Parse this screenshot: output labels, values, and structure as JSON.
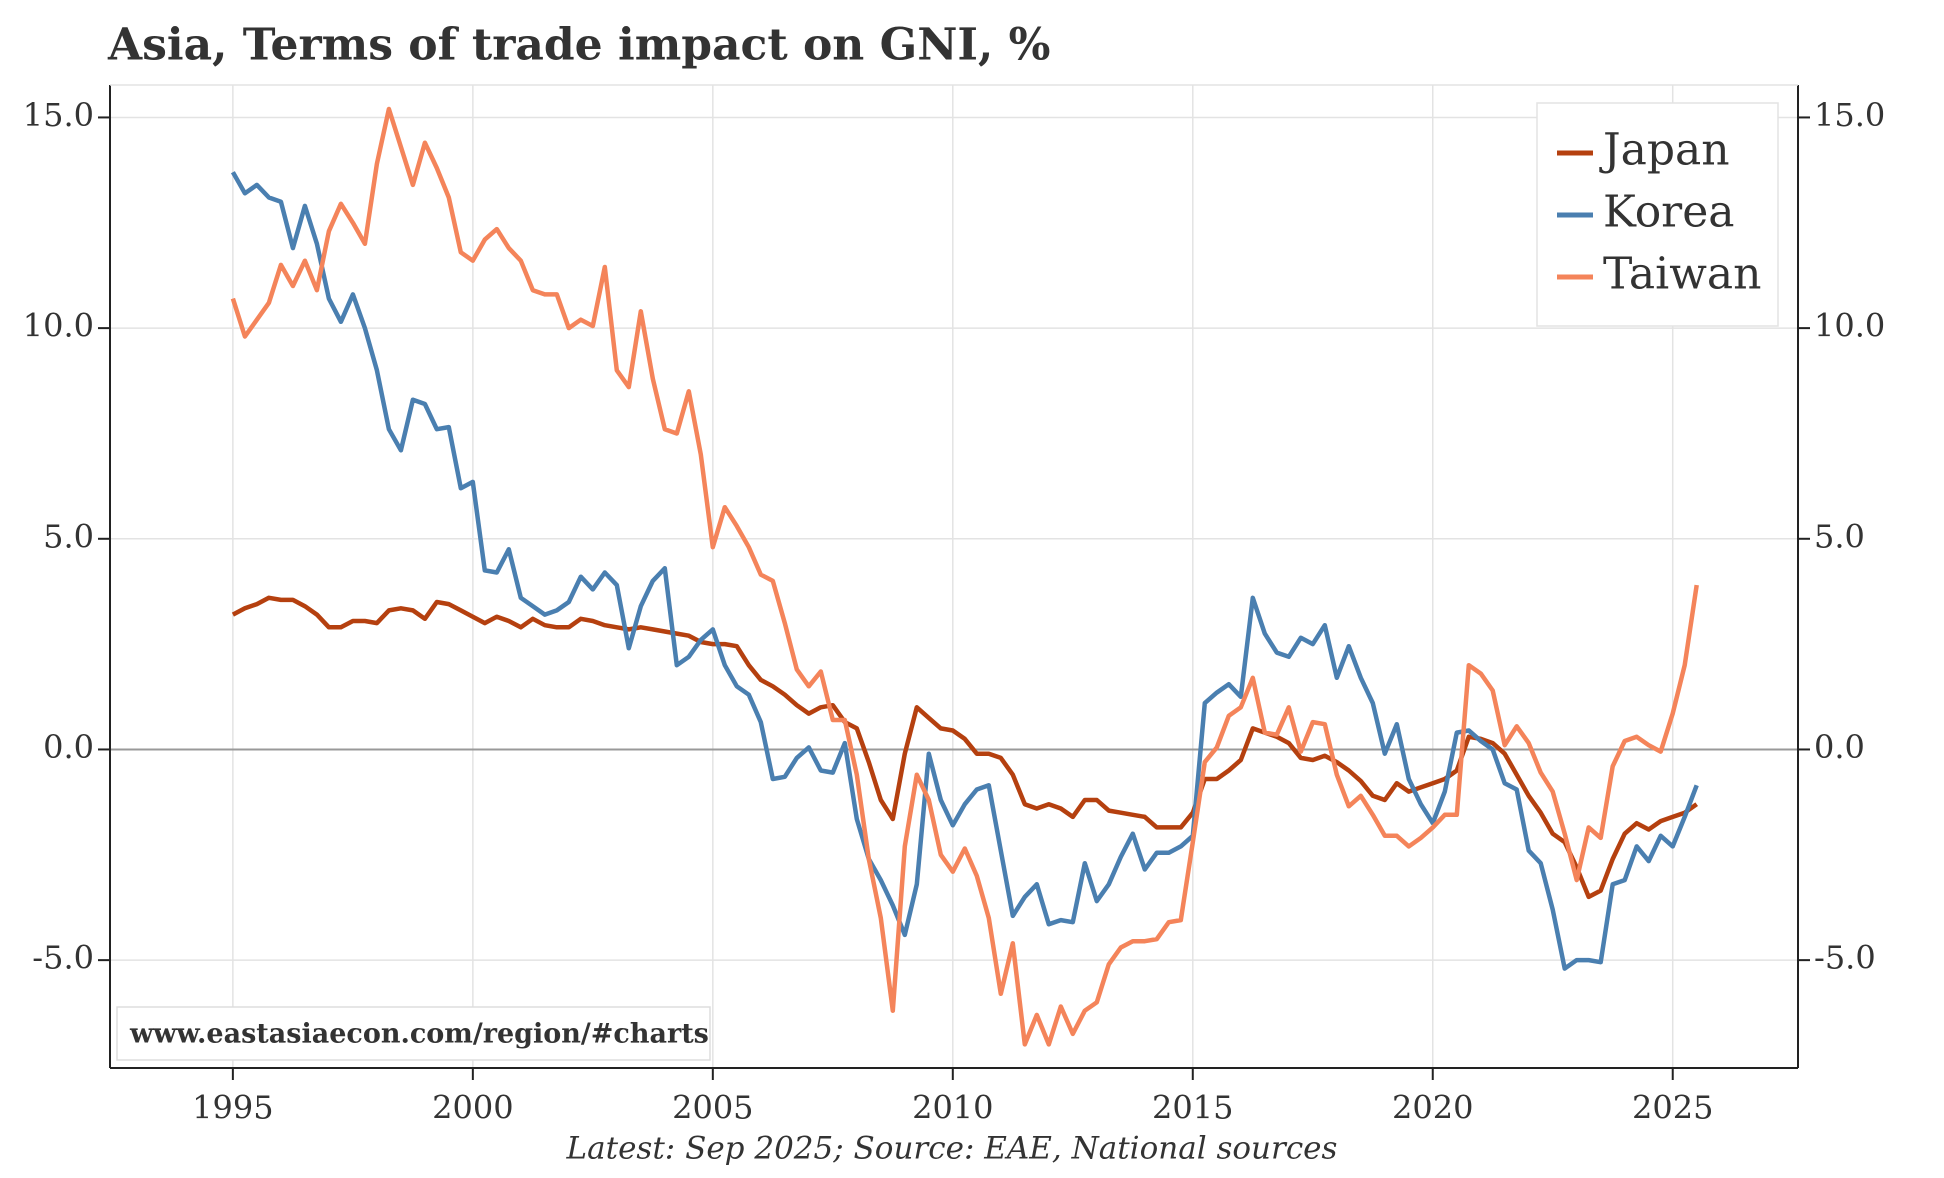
{
  "chart_data": {
    "type": "line",
    "title": "Asia, Terms of trade impact on GNI, %",
    "source": "Latest: Sep 2025; Source: EAE, National sources",
    "watermark": "www.eastasiaecon.com/region/#charts",
    "x": [
      1995,
      1995.25,
      1995.5,
      1995.75,
      1996,
      1996.25,
      1996.5,
      1996.75,
      1997,
      1997.25,
      1997.5,
      1997.75,
      1998,
      1998.25,
      1998.5,
      1998.75,
      1999,
      1999.25,
      1999.5,
      1999.75,
      2000,
      2000.25,
      2000.5,
      2000.75,
      2001,
      2001.25,
      2001.5,
      2001.75,
      2002,
      2002.25,
      2002.5,
      2002.75,
      2003,
      2003.25,
      2003.5,
      2003.75,
      2004,
      2004.25,
      2004.5,
      2004.75,
      2005,
      2005.25,
      2005.5,
      2005.75,
      2006,
      2006.25,
      2006.5,
      2006.75,
      2007,
      2007.25,
      2007.5,
      2007.75,
      2008,
      2008.25,
      2008.5,
      2008.75,
      2009,
      2009.25,
      2009.5,
      2009.75,
      2010,
      2010.25,
      2010.5,
      2010.75,
      2011,
      2011.25,
      2011.5,
      2011.75,
      2012,
      2012.25,
      2012.5,
      2012.75,
      2013,
      2013.25,
      2013.5,
      2013.75,
      2014,
      2014.25,
      2014.5,
      2014.75,
      2015,
      2015.25,
      2015.5,
      2015.75,
      2016,
      2016.25,
      2016.5,
      2016.75,
      2017,
      2017.25,
      2017.5,
      2017.75,
      2018,
      2018.25,
      2018.5,
      2018.75,
      2019,
      2019.25,
      2019.5,
      2019.75,
      2020,
      2020.25,
      2020.5,
      2020.75,
      2021,
      2021.25,
      2021.5,
      2021.75,
      2022,
      2022.25,
      2022.5,
      2022.75,
      2023,
      2023.25,
      2023.5,
      2023.75,
      2024,
      2024.25,
      2024.5,
      2024.75,
      2025,
      2025.25,
      2025.5
    ],
    "series": [
      {
        "name": "Japan",
        "color": "#b5400f",
        "values": [
          3.2,
          3.35,
          3.45,
          3.6,
          3.55,
          3.55,
          3.4,
          3.2,
          2.9,
          2.9,
          3.05,
          3.05,
          3.0,
          3.3,
          3.35,
          3.3,
          3.1,
          3.5,
          3.45,
          3.3,
          3.15,
          3.0,
          3.15,
          3.05,
          2.9,
          3.1,
          2.95,
          2.9,
          2.9,
          3.1,
          3.05,
          2.95,
          2.9,
          2.85,
          2.9,
          2.85,
          2.8,
          2.75,
          2.7,
          2.55,
          2.5,
          2.5,
          2.45,
          2.0,
          1.65,
          1.5,
          1.3,
          1.05,
          0.85,
          1.0,
          1.05,
          0.65,
          0.5,
          -0.3,
          -1.2,
          -1.65,
          -0.1,
          1.0,
          0.75,
          0.5,
          0.45,
          0.25,
          -0.1,
          -0.1,
          -0.2,
          -0.6,
          -1.3,
          -1.4,
          -1.3,
          -1.4,
          -1.6,
          -1.2,
          -1.2,
          -1.45,
          -1.5,
          -1.55,
          -1.6,
          -1.85,
          -1.85,
          -1.85,
          -1.5,
          -0.7,
          -0.7,
          -0.5,
          -0.25,
          0.5,
          0.4,
          0.3,
          0.15,
          -0.2,
          -0.25,
          -0.15,
          -0.3,
          -0.5,
          -0.75,
          -1.1,
          -1.2,
          -0.8,
          -1.0,
          -0.9,
          -0.8,
          -0.7,
          -0.5,
          0.3,
          0.25,
          0.15,
          -0.1,
          -0.6,
          -1.1,
          -1.5,
          -2.0,
          -2.2,
          -2.8,
          -3.5,
          -3.35,
          -2.6,
          -2.0,
          -1.75,
          -1.9,
          -1.7,
          -1.6,
          -1.5,
          -1.3
        ]
      },
      {
        "name": "Korea",
        "color": "#4a7fb0",
        "values": [
          13.7,
          13.2,
          13.4,
          13.1,
          13.0,
          11.9,
          12.9,
          12.0,
          10.7,
          10.15,
          10.8,
          10.0,
          9.0,
          7.6,
          7.1,
          8.3,
          8.2,
          7.6,
          7.65,
          6.2,
          6.35,
          4.25,
          4.2,
          4.75,
          3.6,
          3.4,
          3.2,
          3.3,
          3.5,
          4.1,
          3.8,
          4.2,
          3.9,
          2.4,
          3.4,
          4.0,
          4.3,
          2.0,
          2.2,
          2.6,
          2.85,
          2.0,
          1.5,
          1.3,
          0.65,
          -0.7,
          -0.65,
          -0.2,
          0.05,
          -0.5,
          -0.55,
          0.15,
          -1.65,
          -2.6,
          -3.1,
          -3.7,
          -4.4,
          -3.2,
          -0.1,
          -1.2,
          -1.8,
          -1.3,
          -0.95,
          -0.85,
          -2.4,
          -3.95,
          -3.5,
          -3.2,
          -4.15,
          -4.05,
          -4.1,
          -2.7,
          -3.6,
          -3.2,
          -2.55,
          -2.0,
          -2.85,
          -2.45,
          -2.45,
          -2.3,
          -2.05,
          1.1,
          1.35,
          1.55,
          1.25,
          3.6,
          2.75,
          2.3,
          2.2,
          2.65,
          2.5,
          2.95,
          1.7,
          2.45,
          1.7,
          1.1,
          -0.1,
          0.6,
          -0.7,
          -1.3,
          -1.75,
          -1.0,
          0.4,
          0.45,
          0.2,
          0.0,
          -0.8,
          -0.95,
          -2.4,
          -2.7,
          -3.8,
          -5.2,
          -5.0,
          -5.0,
          -5.05,
          -3.2,
          -3.1,
          -2.3,
          -2.65,
          -2.05,
          -2.3,
          -1.6,
          -0.85
        ]
      },
      {
        "name": "Taiwan",
        "color": "#f4845a",
        "values": [
          10.7,
          9.8,
          10.2,
          10.6,
          11.5,
          11.0,
          11.6,
          10.9,
          12.3,
          12.95,
          12.5,
          12.0,
          13.9,
          15.2,
          14.3,
          13.4,
          14.4,
          13.8,
          13.1,
          11.8,
          11.6,
          12.1,
          12.35,
          11.9,
          11.6,
          10.9,
          10.8,
          10.8,
          10.0,
          10.2,
          10.05,
          11.45,
          9.0,
          8.6,
          10.4,
          8.8,
          7.6,
          7.5,
          8.5,
          7.0,
          4.8,
          5.75,
          5.3,
          4.8,
          4.15,
          4.0,
          3.0,
          1.9,
          1.5,
          1.85,
          0.7,
          0.7,
          -0.6,
          -2.6,
          -4.0,
          -6.2,
          -2.3,
          -0.6,
          -1.2,
          -2.5,
          -2.9,
          -2.35,
          -3.0,
          -4.0,
          -5.8,
          -4.6,
          -7.0,
          -6.3,
          -7.0,
          -6.1,
          -6.75,
          -6.2,
          -6.0,
          -5.1,
          -4.7,
          -4.55,
          -4.55,
          -4.5,
          -4.1,
          -4.05,
          -2.2,
          -0.3,
          0.05,
          0.8,
          1.0,
          1.7,
          0.4,
          0.35,
          1.0,
          -0.05,
          0.65,
          0.6,
          -0.6,
          -1.35,
          -1.1,
          -1.55,
          -2.05,
          -2.05,
          -2.3,
          -2.1,
          -1.85,
          -1.55,
          -1.55,
          2.0,
          1.8,
          1.4,
          0.1,
          0.55,
          0.15,
          -0.55,
          -1.0,
          -2.0,
          -3.1,
          -1.85,
          -2.1,
          -0.4,
          0.2,
          0.3,
          0.1,
          -0.05,
          0.85,
          2.0,
          3.9
        ]
      }
    ],
    "xlim": [
      1992.44,
      2027.61
    ],
    "xticks": [
      1995,
      2000,
      2005,
      2010,
      2015,
      2020,
      2025
    ],
    "ylim": [
      -7.56,
      15.77
    ],
    "yticks": [
      {
        "value": -5,
        "label": "-5.0"
      },
      {
        "value": 0,
        "label": "0.0"
      },
      {
        "value": 5,
        "label": "5.0"
      },
      {
        "value": 10,
        "label": "10.0"
      },
      {
        "value": 15,
        "label": "15.0"
      }
    ],
    "grid": true,
    "legend": "upper right"
  }
}
